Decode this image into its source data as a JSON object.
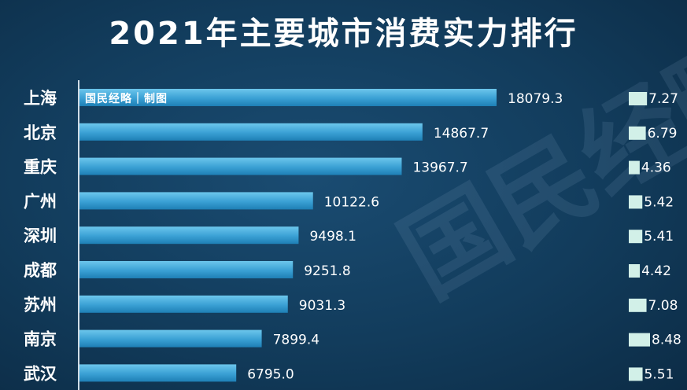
{
  "title": "2021年主要城市消费实力排行",
  "credit": "国民经略｜制图",
  "watermark": "国民经略",
  "colors": {
    "background": "#123c5c",
    "bar_light": "#4fb3e0",
    "bar_dark": "#1e7fb5",
    "side_bar": "#d2f0e8",
    "text": "#ffffff"
  },
  "chart_data": {
    "type": "bar",
    "orientation": "horizontal",
    "categories": [
      "上海",
      "北京",
      "重庆",
      "广州",
      "深圳",
      "成都",
      "苏州",
      "南京",
      "武汉"
    ],
    "series": [
      {
        "values": [
          18079.3,
          14867.7,
          13967.7,
          10122.6,
          9498.1,
          9251.8,
          9031.3,
          7899.4,
          6795.0
        ]
      },
      {
        "values": [
          7.27,
          6.79,
          4.36,
          5.42,
          5.41,
          4.42,
          7.08,
          8.48,
          5.51
        ]
      }
    ],
    "title": "2021年主要城市消费实力排行",
    "xlabel": "",
    "ylabel": "",
    "xlim": [
      0,
      18079.3
    ],
    "grid": false,
    "legend": "none"
  }
}
